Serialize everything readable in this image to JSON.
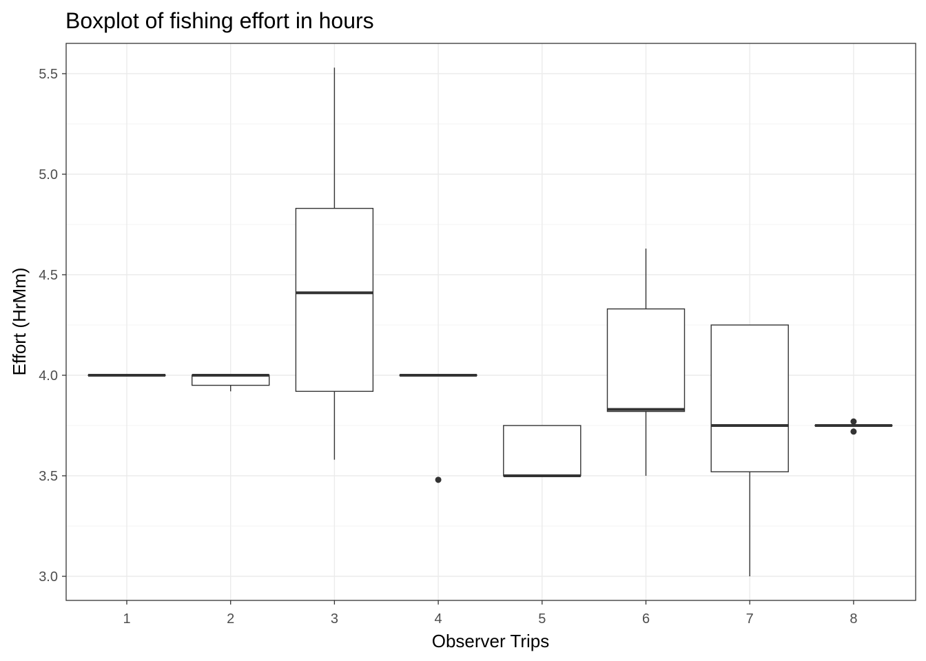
{
  "chart_data": {
    "type": "boxplot",
    "title": "Boxplot of fishing effort in hours",
    "xlabel": "Observer Trips",
    "ylabel": "Effort (HrMm)",
    "categories": [
      "1",
      "2",
      "3",
      "4",
      "5",
      "6",
      "7",
      "8"
    ],
    "y_ticks": [
      "3.0",
      "3.5",
      "4.0",
      "4.5",
      "5.0",
      "5.5"
    ],
    "ylim": [
      2.88,
      5.64
    ],
    "grid": true,
    "boxes": [
      {
        "category": "1",
        "lower_whisker": 4.0,
        "q1": 4.0,
        "median": 4.0,
        "q3": 4.0,
        "upper_whisker": 4.0,
        "outliers": []
      },
      {
        "category": "2",
        "lower_whisker": 3.92,
        "q1": 3.95,
        "median": 4.0,
        "q3": 4.0,
        "upper_whisker": 4.0,
        "outliers": []
      },
      {
        "category": "3",
        "lower_whisker": 3.58,
        "q1": 3.92,
        "median": 4.41,
        "q3": 4.83,
        "upper_whisker": 5.53,
        "outliers": []
      },
      {
        "category": "4",
        "lower_whisker": 4.0,
        "q1": 4.0,
        "median": 4.0,
        "q3": 4.0,
        "upper_whisker": 4.0,
        "outliers": [
          3.48
        ]
      },
      {
        "category": "5",
        "lower_whisker": 3.5,
        "q1": 3.5,
        "median": 3.5,
        "q3": 3.75,
        "upper_whisker": 3.75,
        "outliers": []
      },
      {
        "category": "6",
        "lower_whisker": 3.5,
        "q1": 3.82,
        "median": 3.83,
        "q3": 4.33,
        "upper_whisker": 4.63,
        "outliers": []
      },
      {
        "category": "7",
        "lower_whisker": 3.0,
        "q1": 3.52,
        "median": 3.75,
        "q3": 4.25,
        "upper_whisker": 4.25,
        "outliers": []
      },
      {
        "category": "8",
        "lower_whisker": 3.75,
        "q1": 3.75,
        "median": 3.75,
        "q3": 3.75,
        "upper_whisker": 3.75,
        "outliers": [
          3.77,
          3.72
        ]
      }
    ],
    "colors": {
      "box_line": "#333333",
      "grid_major": "#ebebeb",
      "grid_minor": "#f3f3f3",
      "panel_border": "#333333"
    }
  }
}
